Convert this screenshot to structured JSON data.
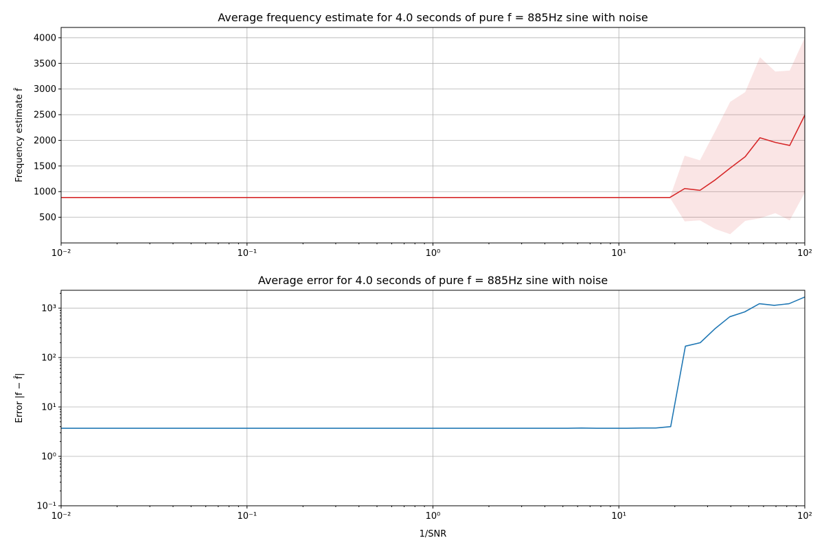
{
  "chart_data": [
    {
      "type": "line",
      "title": "Average frequency estimate for 4.0 seconds of pure f = 885Hz sine with noise",
      "ylabel": "Frequency estimate f̂",
      "xlabel": "",
      "xscale": "log",
      "yscale": "linear",
      "xlim": [
        0.01,
        100
      ],
      "ylim": [
        0,
        4200
      ],
      "grid": true,
      "x_ticks": [
        0.01,
        0.1,
        1,
        10,
        100
      ],
      "x_tick_labels": [
        "10⁻²",
        "10⁻¹",
        "10⁰",
        "10¹",
        "10²"
      ],
      "y_ticks": [
        500,
        1000,
        1500,
        2000,
        2500,
        3000,
        3500,
        4000
      ],
      "y_tick_labels": [
        "500",
        "1000",
        "1500",
        "2000",
        "2500",
        "3000",
        "3500",
        "4000"
      ],
      "series": [
        {
          "color": "#d62728",
          "x": [
            0.01,
            18.8,
            22.6,
            27.3,
            33.0,
            39.7,
            47.8,
            57.4,
            69.4,
            83.0,
            100
          ],
          "y": [
            885,
            885,
            1060,
            1025,
            1230,
            1460,
            1680,
            2050,
            1960,
            1900,
            2490
          ]
        }
      ],
      "band": {
        "color": "#d62728",
        "opacity": 0.12,
        "x": [
          0.01,
          18.8,
          22.6,
          27.3,
          33.0,
          39.7,
          47.8,
          57.4,
          69.4,
          83.0,
          100
        ],
        "upper": [
          885,
          885,
          1700,
          1610,
          2180,
          2750,
          2940,
          3620,
          3340,
          3360,
          4000
        ],
        "lower": [
          885,
          885,
          420,
          440,
          270,
          170,
          430,
          480,
          580,
          440,
          980
        ]
      }
    },
    {
      "type": "line",
      "title": "Average error for 4.0 seconds of pure f = 885Hz sine with noise",
      "ylabel": "Error |f − f̂|",
      "xlabel": "1/SNR",
      "xscale": "log",
      "yscale": "log",
      "xlim": [
        0.01,
        100
      ],
      "ylim": [
        0.1,
        2300
      ],
      "grid": true,
      "x_ticks": [
        0.01,
        0.1,
        1,
        10,
        100
      ],
      "x_tick_labels": [
        "10⁻²",
        "10⁻¹",
        "10⁰",
        "10¹",
        "10²"
      ],
      "y_ticks": [
        0.1,
        1,
        10,
        100,
        1000
      ],
      "y_tick_labels": [
        "10⁻¹",
        "10⁰",
        "10¹",
        "10²",
        "10³"
      ],
      "series": [
        {
          "color": "#1f77b4",
          "x": [
            0.01,
            5.3,
            6.3,
            7.6,
            9.1,
            11.0,
            13.2,
            15.8,
            19.0,
            22.8,
            27.4,
            32.8,
            39.5,
            47.5,
            57.0,
            68.5,
            82.3,
            100
          ],
          "y": [
            3.7,
            3.7,
            3.75,
            3.7,
            3.7,
            3.7,
            3.75,
            3.75,
            4.0,
            170,
            200,
            380,
            670,
            840,
            1230,
            1140,
            1230,
            1680
          ]
        }
      ]
    }
  ]
}
